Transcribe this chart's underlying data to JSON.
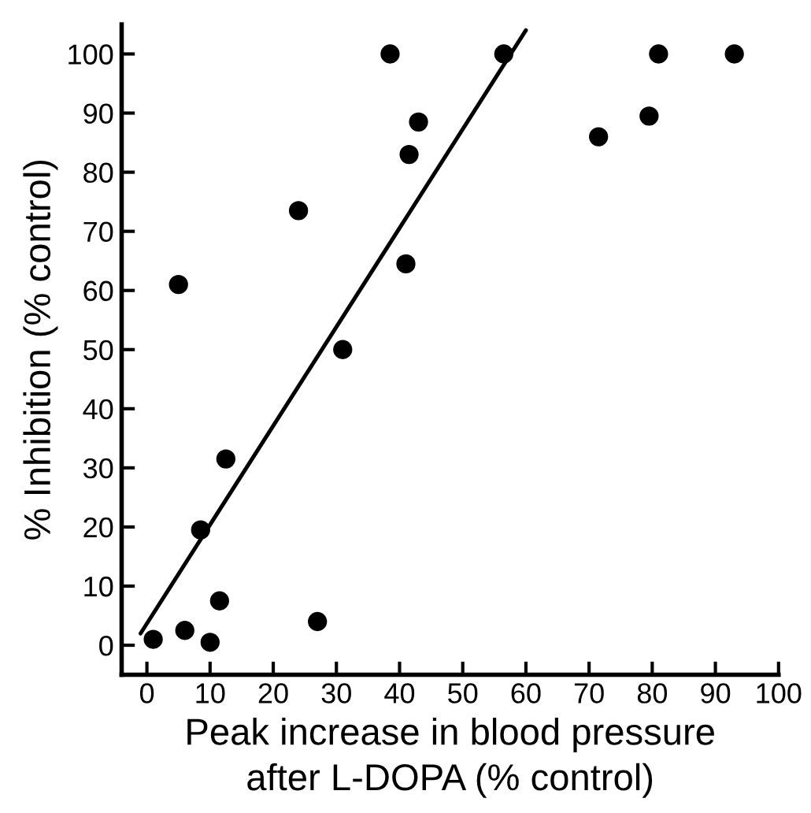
{
  "chart_data": {
    "type": "scatter",
    "xlabel": "Peak increase in blood pressure\nafter L-DOPA (% control)",
    "ylabel": "% Inhibition (% control)",
    "series": [
      {
        "color": "#000000",
        "marker": "circle",
        "x": [
          1,
          6,
          10,
          11.5,
          12.5,
          8.5,
          27,
          5,
          24,
          31,
          41,
          38.5,
          41.5,
          43,
          56.5,
          71.5,
          79.5,
          81,
          93
        ],
        "values": [
          1,
          2.5,
          0.5,
          7.5,
          31.5,
          19.5,
          4,
          61,
          73.5,
          50,
          64.5,
          100,
          83,
          88.5,
          100,
          86,
          89.5,
          100,
          100
        ]
      },
      {
        "type": "line",
        "color": "#000000",
        "marker": "none",
        "line_style": "solid",
        "x": [
          -1,
          60
        ],
        "values": [
          2,
          104
        ]
      }
    ],
    "xlim": [
      -4,
      100
    ],
    "ylim": [
      -5,
      105
    ],
    "xticks": [
      0,
      10,
      20,
      30,
      40,
      50,
      60,
      70,
      80,
      90,
      100
    ],
    "yticks": [
      0,
      10,
      20,
      30,
      40,
      50,
      60,
      70,
      80,
      90,
      100
    ],
    "grid": false,
    "legend": false
  }
}
